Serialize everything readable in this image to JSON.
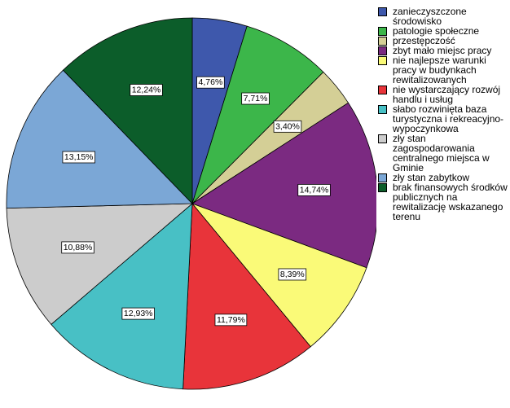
{
  "chart_data": {
    "type": "pie",
    "start_angle_deg": 0,
    "direction": "clockwise",
    "legend_position": "right",
    "slices": [
      {
        "label": "zanieczyszczone środowisko",
        "value": 4.76,
        "value_label": "4,76%",
        "color": "#3e58ac"
      },
      {
        "label": "patologie społeczne",
        "value": 7.71,
        "value_label": "7,71%",
        "color": "#3cb64a"
      },
      {
        "label": "przestępczość",
        "value": 3.4,
        "value_label": "3,40%",
        "color": "#d4cf96"
      },
      {
        "label": "zbyt mało miejsc pracy",
        "value": 14.74,
        "value_label": "14,74%",
        "color": "#7b2a81"
      },
      {
        "label": "nie najlepsze warunki pracy w budynkach rewitalizowanych",
        "value": 8.39,
        "value_label": "8,39%",
        "color": "#fafa78"
      },
      {
        "label": "nie wystarczający rozwój handlu i usług",
        "value": 11.79,
        "value_label": "11,79%",
        "color": "#e8343a"
      },
      {
        "label": "słabo rozwinięta baza turystyczna i rekreacyjno-wypoczynkowa",
        "value": 12.93,
        "value_label": "12,93%",
        "color": "#48c0c5"
      },
      {
        "label": "zły stan zagospodarowania centralnego miejsca w Gminie",
        "value": 10.88,
        "value_label": "10,88%",
        "color": "#cccccc"
      },
      {
        "label": "zły stan zabytkow",
        "value": 13.15,
        "value_label": "13,15%",
        "color": "#7ba7d6"
      },
      {
        "label": "brak finansowych środków publicznych na rewitalizację wskazanego terenu",
        "value": 12.24,
        "value_label": "12,24%",
        "color": "#0c5d2a"
      }
    ]
  }
}
